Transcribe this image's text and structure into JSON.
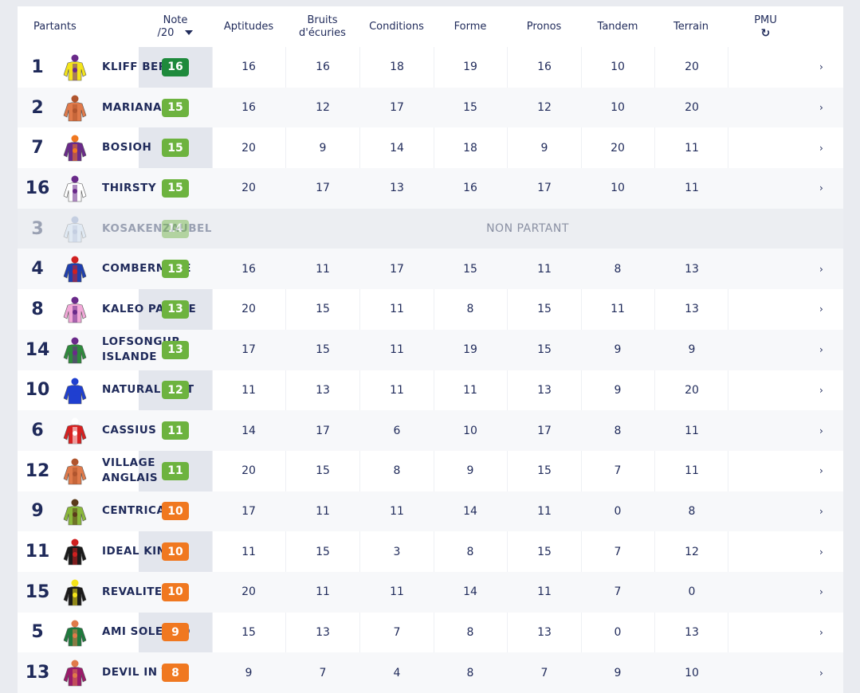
{
  "header": {
    "partants": "Partants",
    "note_line1": "Note",
    "note_line2": "/20",
    "aptitudes": "Aptitudes",
    "bruits_line1": "Bruits",
    "bruits_line2": "d'écuries",
    "conditions": "Conditions",
    "forme": "Forme",
    "pronos": "Pronos",
    "tandem": "Tandem",
    "terrain": "Terrain",
    "pmu": "PMU",
    "refresh_icon": "↻",
    "sort_icon": "caret-down-icon"
  },
  "non_partant_label": "NON PARTANT",
  "chevron": "›",
  "colors": {
    "green_dark": "#1e8a3c",
    "green": "#6db33f",
    "orange": "#f07820",
    "text": "#1f2a5a"
  },
  "rows": [
    {
      "num": "1",
      "name": "KLIFF BERE",
      "note": "16",
      "color": "#1e8a3c",
      "apt": "16",
      "bruits": "16",
      "cond": "18",
      "forme": "19",
      "pronos": "16",
      "tandem": "10",
      "terrain": "20",
      "silk": [
        "#f4e41a",
        "#6a2a8a"
      ],
      "np": false
    },
    {
      "num": "2",
      "name": "MARIANAC",
      "note": "15",
      "color": "#6db33f",
      "apt": "16",
      "bruits": "12",
      "cond": "17",
      "forme": "15",
      "pronos": "12",
      "tandem": "10",
      "terrain": "20",
      "silk": [
        "#e07a4a",
        "#b0552e"
      ],
      "np": false
    },
    {
      "num": "7",
      "name": "BOSIOH",
      "note": "15",
      "color": "#6db33f",
      "apt": "20",
      "bruits": "9",
      "cond": "14",
      "forme": "18",
      "pronos": "9",
      "tandem": "20",
      "terrain": "11",
      "silk": [
        "#6a2a8a",
        "#f07820"
      ],
      "np": false
    },
    {
      "num": "16",
      "name": "THIRSTY",
      "note": "15",
      "color": "#6db33f",
      "apt": "20",
      "bruits": "17",
      "cond": "13",
      "forme": "16",
      "pronos": "17",
      "tandem": "10",
      "terrain": "11",
      "silk": [
        "#ffffff",
        "#6a2a8a"
      ],
      "np": false
    },
    {
      "num": "3",
      "name": "KOSAKENZAUBEL",
      "note": "14",
      "color": "#6db33f",
      "apt": "",
      "bruits": "",
      "cond": "",
      "forme": "",
      "pronos": "",
      "tandem": "",
      "terrain": "",
      "silk": [
        "#cfe3f5",
        "#8aa0c8"
      ],
      "np": true
    },
    {
      "num": "4",
      "name": "COMBERMERE",
      "note": "13",
      "color": "#6db33f",
      "apt": "16",
      "bruits": "11",
      "cond": "17",
      "forme": "15",
      "pronos": "11",
      "tandem": "8",
      "terrain": "13",
      "silk": [
        "#1f3fae",
        "#d02020"
      ],
      "np": false
    },
    {
      "num": "8",
      "name": "KALEO PALACE",
      "note": "13",
      "color": "#6db33f",
      "apt": "20",
      "bruits": "15",
      "cond": "11",
      "forme": "8",
      "pronos": "15",
      "tandem": "11",
      "terrain": "13",
      "silk": [
        "#f2a8d8",
        "#6a2a8a"
      ],
      "np": false
    },
    {
      "num": "14",
      "name": "LOFSONGUR ISLANDE",
      "note": "13",
      "color": "#6db33f",
      "apt": "17",
      "bruits": "15",
      "cond": "11",
      "forme": "19",
      "pronos": "15",
      "tandem": "9",
      "terrain": "9",
      "silk": [
        "#2e8a3c",
        "#6a2a8a"
      ],
      "np": false
    },
    {
      "num": "10",
      "name": "NATURAL GIFT",
      "note": "12",
      "color": "#6db33f",
      "apt": "11",
      "bruits": "13",
      "cond": "11",
      "forme": "11",
      "pronos": "13",
      "tandem": "9",
      "terrain": "20",
      "silk": [
        "#1f3fd0",
        "#1f3fd0"
      ],
      "np": false
    },
    {
      "num": "6",
      "name": "CASSIUS",
      "note": "11",
      "color": "#6db33f",
      "apt": "14",
      "bruits": "17",
      "cond": "6",
      "forme": "10",
      "pronos": "17",
      "tandem": "8",
      "terrain": "11",
      "silk": [
        "#d82020",
        "#ffffff"
      ],
      "np": false
    },
    {
      "num": "12",
      "name": "VILLAGE ANGLAIS",
      "note": "11",
      "color": "#6db33f",
      "apt": "20",
      "bruits": "15",
      "cond": "8",
      "forme": "9",
      "pronos": "15",
      "tandem": "7",
      "terrain": "11",
      "silk": [
        "#e07a4a",
        "#b0552e"
      ],
      "np": false
    },
    {
      "num": "9",
      "name": "CENTRICAL",
      "note": "10",
      "color": "#f07820",
      "apt": "17",
      "bruits": "11",
      "cond": "11",
      "forme": "14",
      "pronos": "11",
      "tandem": "0",
      "terrain": "8",
      "silk": [
        "#8ab83a",
        "#5a3a1a"
      ],
      "np": false
    },
    {
      "num": "11",
      "name": "IDEAL KING",
      "note": "10",
      "color": "#f07820",
      "apt": "11",
      "bruits": "15",
      "cond": "3",
      "forme": "8",
      "pronos": "15",
      "tandem": "7",
      "terrain": "12",
      "silk": [
        "#1a1a1a",
        "#d02020"
      ],
      "np": false
    },
    {
      "num": "15",
      "name": "REVALITE",
      "note": "10",
      "color": "#f07820",
      "apt": "20",
      "bruits": "11",
      "cond": "11",
      "forme": "14",
      "pronos": "11",
      "tandem": "7",
      "terrain": "0",
      "silk": [
        "#1a1a1a",
        "#f4e41a"
      ],
      "np": false
    },
    {
      "num": "5",
      "name": "AMI SOLEDAD",
      "note": "9",
      "color": "#f07820",
      "apt": "15",
      "bruits": "13",
      "cond": "7",
      "forme": "8",
      "pronos": "13",
      "tandem": "0",
      "terrain": "13",
      "silk": [
        "#1e7a3c",
        "#e07a4a"
      ],
      "np": false
    },
    {
      "num": "13",
      "name": "DEVIL IN THE",
      "note": "8",
      "color": "#f07820",
      "apt": "9",
      "bruits": "7",
      "cond": "4",
      "forme": "8",
      "pronos": "7",
      "tandem": "9",
      "terrain": "10",
      "silk": [
        "#9a1a6a",
        "#e07a4a"
      ],
      "np": false
    }
  ]
}
